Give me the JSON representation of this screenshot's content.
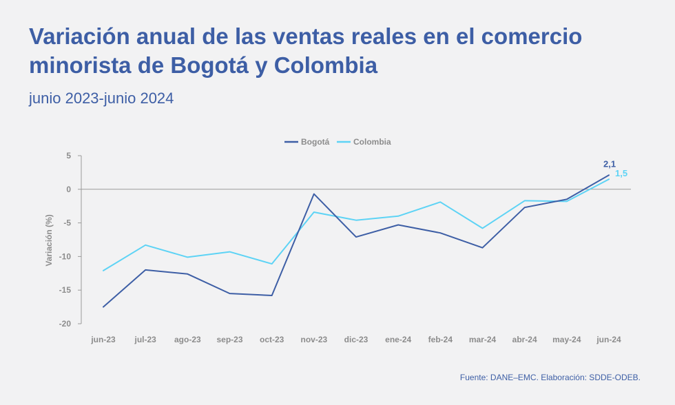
{
  "header": {
    "title": "Variación anual de las ventas reales en el comercio minorista de Bogotá y Colombia",
    "subtitle": "junio 2023-junio 2024"
  },
  "footer": {
    "source": "Fuente: DANE–EMC. Elaboración: SDDE-ODEB."
  },
  "colors": {
    "bogota": "#3d5ea5",
    "colombia": "#5dd3f5",
    "axis": "#9a9a9a",
    "text": "#3d5ea5"
  },
  "chart_data": {
    "type": "line",
    "title": "Variación anual de las ventas reales en el comercio minorista de Bogotá y Colombia",
    "subtitle": "junio 2023-junio 2024",
    "xlabel": "",
    "ylabel": "Variación (%)",
    "ylim": [
      -20,
      5
    ],
    "yticks": [
      5,
      0,
      -5,
      -10,
      -15,
      -20
    ],
    "grid": false,
    "legend": "top-center",
    "categories": [
      "jun-23",
      "jul-23",
      "ago-23",
      "sep-23",
      "oct-23",
      "nov-23",
      "dic-23",
      "ene-24",
      "feb-24",
      "mar-24",
      "abr-24",
      "may-24",
      "jun-24"
    ],
    "series": [
      {
        "name": "Bogotá",
        "color": "#3d5ea5",
        "values": [
          -17.5,
          -12.0,
          -12.6,
          -15.5,
          -15.8,
          -0.7,
          -7.1,
          -5.3,
          -6.5,
          -8.7,
          -2.7,
          -1.5,
          2.1
        ],
        "end_label": "2,1"
      },
      {
        "name": "Colombia",
        "color": "#5dd3f5",
        "values": [
          -12.1,
          -8.3,
          -10.1,
          -9.3,
          -11.1,
          -3.4,
          -4.6,
          -4.0,
          -1.9,
          -5.8,
          -1.7,
          -1.8,
          1.5
        ],
        "end_label": "1,5"
      }
    ]
  }
}
